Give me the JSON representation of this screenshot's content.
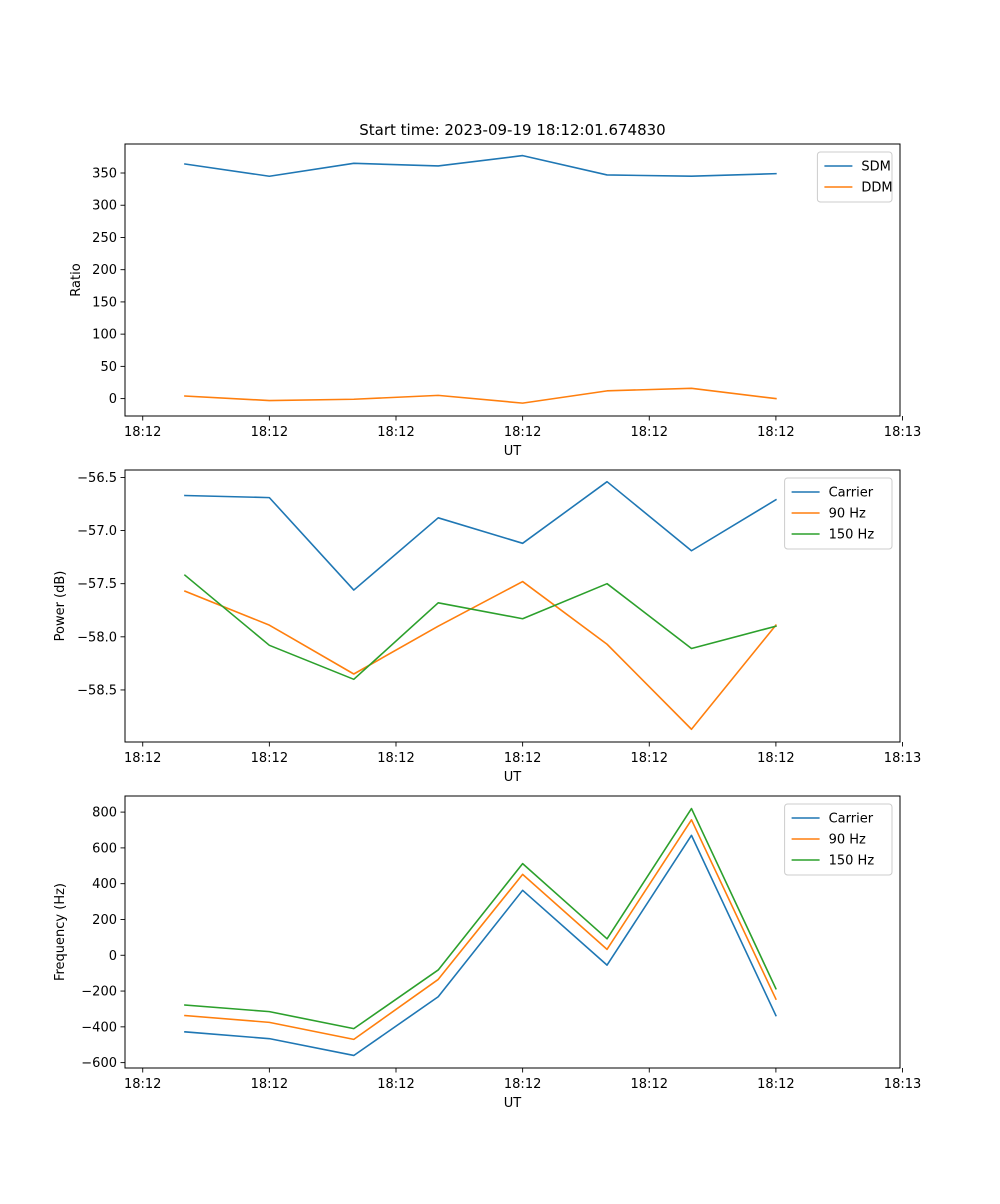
{
  "chart_data": [
    {
      "type": "line",
      "title": "Start time: 2023-09-19 18:12:01.674830",
      "xlabel": "UT",
      "ylabel": "Ratio",
      "x": [
        1,
        2,
        3,
        4,
        5,
        6,
        7,
        8
      ],
      "xlim": [
        0.29,
        9.47
      ],
      "xticks": [
        {
          "value": 0.5,
          "label": "18:12"
        },
        {
          "value": 2.0,
          "label": "18:12"
        },
        {
          "value": 3.5,
          "label": "18:12"
        },
        {
          "value": 5.0,
          "label": "18:12"
        },
        {
          "value": 6.5,
          "label": "18:12"
        },
        {
          "value": 8.0,
          "label": "18:12"
        },
        {
          "value": 9.5,
          "label": "18:13"
        }
      ],
      "ylim": [
        -27,
        395
      ],
      "yticks": [
        0,
        50,
        100,
        150,
        200,
        250,
        300,
        350
      ],
      "legend_position": "upper right",
      "series": [
        {
          "name": "SDM",
          "color": "#1f77b4",
          "values": [
            364,
            345,
            365,
            361,
            377,
            347,
            345,
            349
          ]
        },
        {
          "name": "DDM",
          "color": "#ff7f0e",
          "values": [
            4,
            -3,
            -1,
            5,
            -7,
            12,
            16,
            0
          ]
        }
      ]
    },
    {
      "type": "line",
      "title": "",
      "xlabel": "UT",
      "ylabel": "Power (dB)",
      "x": [
        1,
        2,
        3,
        4,
        5,
        6,
        7,
        8
      ],
      "xlim": [
        0.29,
        9.47
      ],
      "xticks": [
        {
          "value": 0.5,
          "label": "18:12"
        },
        {
          "value": 2.0,
          "label": "18:12"
        },
        {
          "value": 3.5,
          "label": "18:12"
        },
        {
          "value": 5.0,
          "label": "18:12"
        },
        {
          "value": 6.5,
          "label": "18:12"
        },
        {
          "value": 8.0,
          "label": "18:12"
        },
        {
          "value": 9.5,
          "label": "18:13"
        }
      ],
      "ylim": [
        -58.99,
        -56.43
      ],
      "yticks": [
        -56.5,
        -57.0,
        -57.5,
        -58.0,
        -58.5
      ],
      "ytick_labels": [
        "−56.5",
        "−57.0",
        "−57.5",
        "−58.0",
        "−58.5"
      ],
      "legend_position": "upper right",
      "series": [
        {
          "name": "Carrier",
          "color": "#1f77b4",
          "values": [
            -56.67,
            -56.69,
            -57.56,
            -56.88,
            -57.12,
            -56.54,
            -57.19,
            -56.71
          ]
        },
        {
          "name": "90 Hz",
          "color": "#ff7f0e",
          "values": [
            -57.57,
            -57.89,
            -58.35,
            -57.9,
            -57.48,
            -58.07,
            -58.87,
            -57.89
          ]
        },
        {
          "name": "150 Hz",
          "color": "#2ca02c",
          "values": [
            -57.42,
            -58.08,
            -58.4,
            -57.68,
            -57.83,
            -57.5,
            -58.11,
            -57.9
          ]
        }
      ]
    },
    {
      "type": "line",
      "title": "",
      "xlabel": "UT",
      "ylabel": "Frequency (Hz)",
      "x": [
        1,
        2,
        3,
        4,
        5,
        6,
        7,
        8
      ],
      "xlim": [
        0.29,
        9.47
      ],
      "xticks": [
        {
          "value": 0.5,
          "label": "18:12"
        },
        {
          "value": 2.0,
          "label": "18:12"
        },
        {
          "value": 3.5,
          "label": "18:12"
        },
        {
          "value": 5.0,
          "label": "18:12"
        },
        {
          "value": 6.5,
          "label": "18:12"
        },
        {
          "value": 8.0,
          "label": "18:12"
        },
        {
          "value": 9.5,
          "label": "18:13"
        }
      ],
      "ylim": [
        -630,
        890
      ],
      "yticks": [
        -600,
        -400,
        -200,
        0,
        200,
        400,
        600,
        800
      ],
      "ytick_labels": [
        "−600",
        "−400",
        "−200",
        "0",
        "200",
        "400",
        "600",
        "800"
      ],
      "legend_position": "upper right",
      "series": [
        {
          "name": "Carrier",
          "color": "#1f77b4",
          "values": [
            -428,
            -466,
            -560,
            -232,
            363,
            -55,
            670,
            -337
          ]
        },
        {
          "name": "90 Hz",
          "color": "#ff7f0e",
          "values": [
            -337,
            -375,
            -470,
            -135,
            452,
            33,
            757,
            -245
          ]
        },
        {
          "name": "150 Hz",
          "color": "#2ca02c",
          "values": [
            -278,
            -315,
            -410,
            -82,
            512,
            92,
            820,
            -187
          ]
        }
      ]
    }
  ]
}
